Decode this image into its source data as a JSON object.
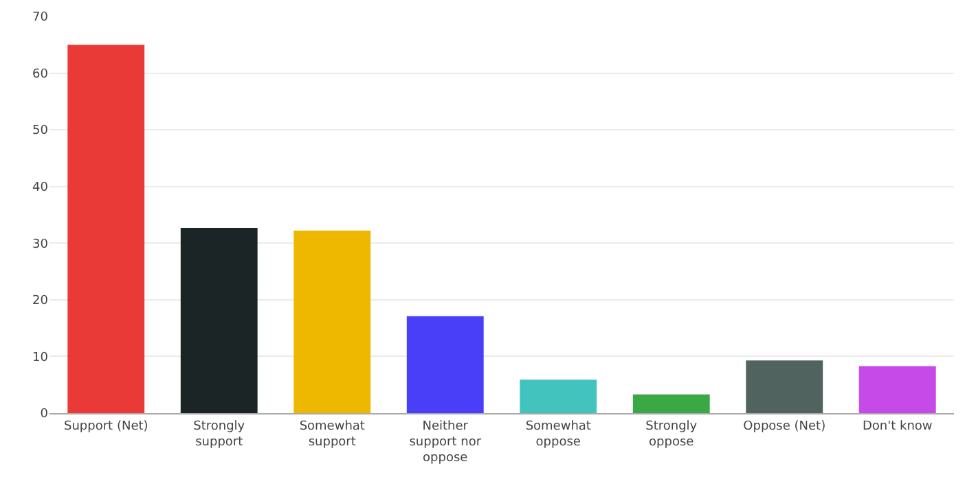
{
  "chart_data": {
    "type": "bar",
    "categories": [
      "Support (Net)",
      "Strongly support",
      "Somewhat support",
      "Neither support nor oppose",
      "Somewhat oppose",
      "Strongly oppose",
      "Oppose (Net)",
      "Don't know"
    ],
    "values": [
      65,
      32.7,
      32.2,
      17.1,
      5.9,
      3.3,
      9.3,
      8.3
    ],
    "colors": [
      "#e93a37",
      "#1b2526",
      "#efb800",
      "#4a3ff8",
      "#43c3be",
      "#3aa845",
      "#50635f",
      "#c64ae7"
    ],
    "ylim": [
      0,
      70
    ],
    "yticks": [
      0,
      10,
      20,
      30,
      40,
      50,
      60,
      70
    ],
    "grid": "y",
    "legend": false
  }
}
